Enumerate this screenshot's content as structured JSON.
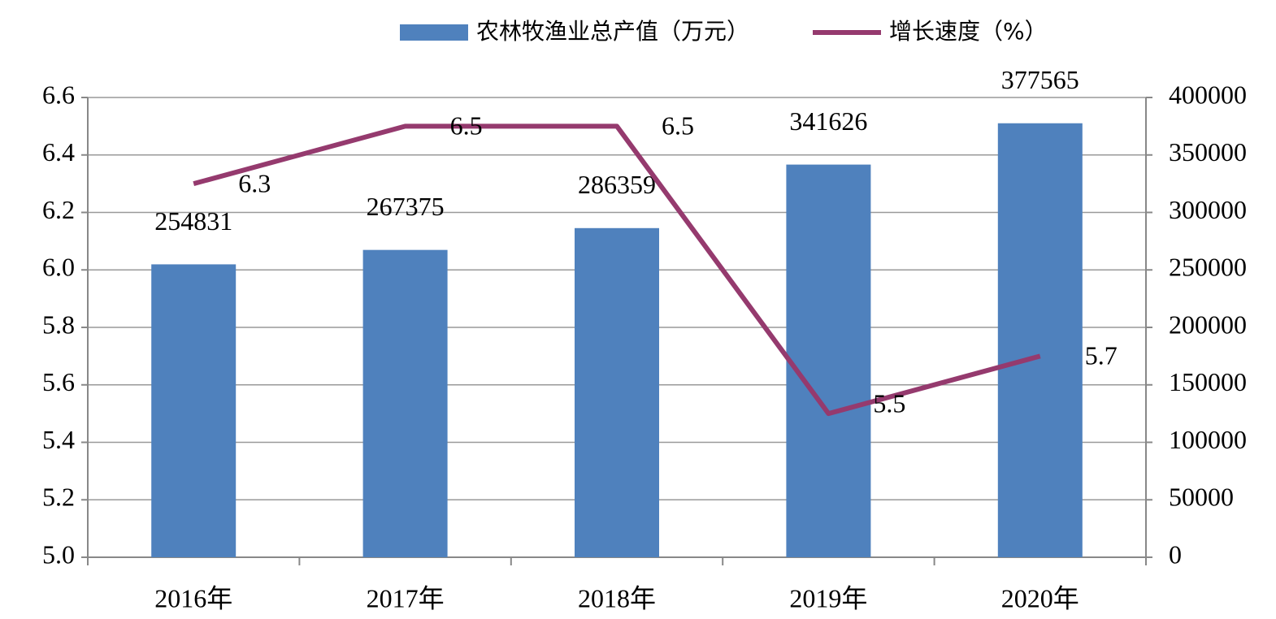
{
  "chart_data": {
    "type": "bar_line",
    "categories": [
      "2016年",
      "2017年",
      "2018年",
      "2019年",
      "2020年"
    ],
    "series": [
      {
        "name": "农林牧渔业总产值（万元）",
        "type": "bar",
        "color": "#4f81bd",
        "axis": "y2",
        "values": [
          254831,
          267375,
          286359,
          341626,
          377565
        ]
      },
      {
        "name": "增长速度（%）",
        "type": "line",
        "color": "#953a6e",
        "axis": "y",
        "values": [
          6.3,
          6.5,
          6.5,
          5.5,
          5.7
        ]
      }
    ],
    "ylim": [
      5,
      6.6
    ],
    "yticks": [
      {
        "value": 5,
        "label": "5.0"
      },
      5.2,
      5.4,
      5.6,
      5.8,
      {
        "value": 6,
        "label": "6.0"
      },
      6.2,
      6.4,
      6.6
    ],
    "y2lim": [
      0,
      400000
    ],
    "y2ticks": [
      0,
      50000,
      100000,
      150000,
      200000,
      250000,
      300000,
      350000,
      400000
    ],
    "grid": true,
    "legend": "top"
  }
}
